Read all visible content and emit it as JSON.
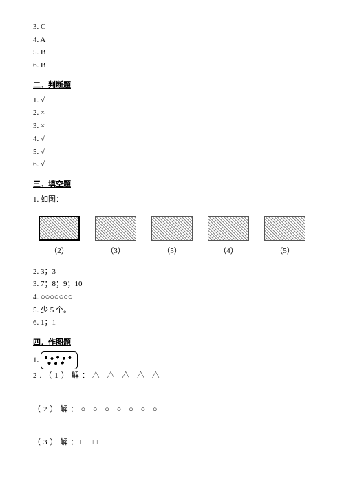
{
  "top_answers": [
    "3. C",
    "4. A",
    "5. B",
    "6. B"
  ],
  "section2": {
    "title": "二．判断题",
    "items": [
      "1. √",
      "2. ×",
      "3. ×",
      "4. √",
      "5. √",
      "6. √"
    ]
  },
  "section3": {
    "title": "三．填空题",
    "item1": "1. 如图：",
    "labels": [
      "（2）",
      "（3）",
      "（5）",
      "（4）",
      "（5）"
    ],
    "items_rest": [
      "2. 3；3",
      "3. 7；8；9；10",
      "4. ○○○○○○○",
      "5. 少 5 个。",
      "6. 1；1"
    ]
  },
  "section4": {
    "title": "四．作图题",
    "item1_prefix": "1.",
    "item2_1": "2.（1）解：△ △ △ △ △",
    "item2_2": "（2）解：○ ○ ○ ○ ○ ○ ○",
    "item2_3": "（3）解：□ □"
  },
  "colors": {
    "text": "#000000",
    "background": "#ffffff"
  },
  "typography": {
    "font_family": "SimSun",
    "base_fontsize_pt": 8
  }
}
